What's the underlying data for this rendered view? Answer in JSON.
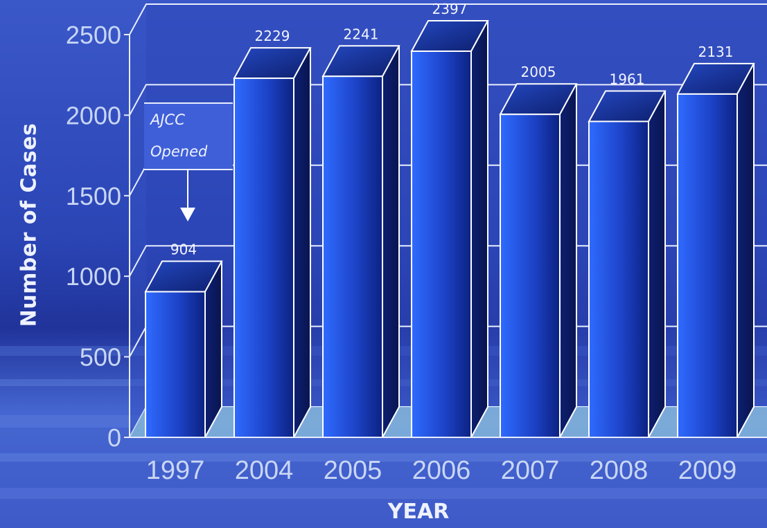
{
  "chart_data": {
    "type": "bar",
    "style": "3d-column",
    "categories": [
      "1997",
      "2004",
      "2005",
      "2006",
      "2007",
      "2008",
      "2009"
    ],
    "values": [
      904,
      2229,
      2241,
      2397,
      2005,
      1961,
      2131
    ],
    "data_labels": [
      "904",
      "2229",
      "2241",
      "2397",
      "2005",
      "1961",
      "2131"
    ],
    "xlabel": "YEAR",
    "ylabel": "Number of Cases",
    "ylim": [
      0,
      2500
    ],
    "yticks": [
      0,
      500,
      1000,
      1500,
      2000,
      2500
    ],
    "ytick_labels": [
      "0",
      "500",
      "1000",
      "1500",
      "2000",
      "2500"
    ],
    "grid": true,
    "annotation": {
      "lines": [
        "AJCC",
        "Opened"
      ],
      "points_to": "1997"
    }
  },
  "colors": {
    "background": "#2f4fc6",
    "bar_front_light": "#2f66ff",
    "bar_front_dark": "#0f2a9a",
    "bar_top": "#1c3aa0",
    "bar_side": "#0b1d66",
    "floor": "#7fb0d8",
    "text": "#eef2ff",
    "grid": "#e8eeff"
  }
}
